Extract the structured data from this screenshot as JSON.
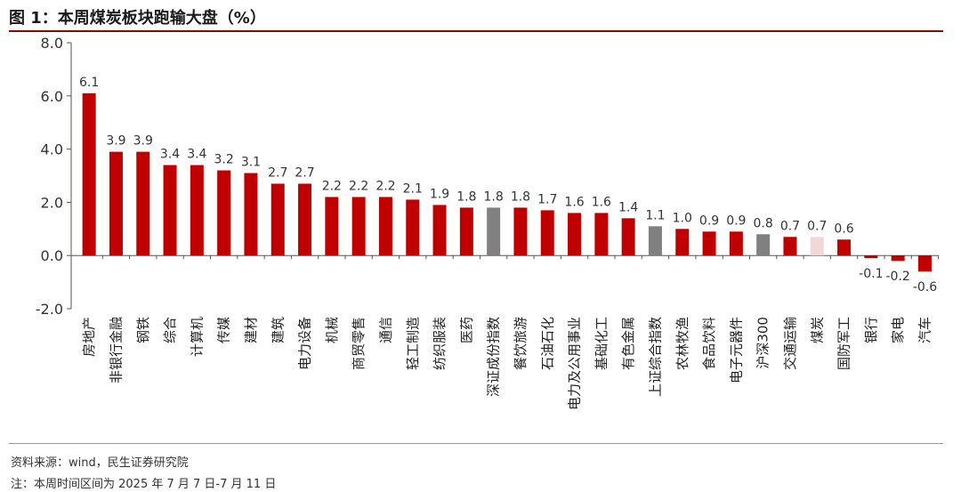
{
  "title": "图 1：本周煤炭板块跑输大盘（%）",
  "source_note": "资料来源：wind，民生证券研究院",
  "period_note": "注：本周时间区间为 2025 年 7 月 7 日-7 月 11 日",
  "colors": {
    "bar_default": "#c00000",
    "bar_index": "#808080",
    "bar_highlight": "#f2d7d7",
    "axis": "#555555"
  },
  "chart_data": {
    "type": "bar",
    "title": "图 1：本周煤炭板块跑输大盘（%）",
    "xlabel": "",
    "ylabel": "",
    "ylim": [
      -2.0,
      8.0
    ],
    "yticks": [
      "8.0",
      "6.0",
      "4.0",
      "2.0",
      "0.0",
      "-2.0"
    ],
    "grid": false,
    "legend": "none",
    "categories": [
      "房地产",
      "非银行金融",
      "钢铁",
      "综合",
      "计算机",
      "传媒",
      "建材",
      "建筑",
      "电力设备",
      "机械",
      "商贸零售",
      "通信",
      "轻工制造",
      "纺织服装",
      "医药",
      "深证成份指数",
      "餐饮旅游",
      "石油石化",
      "电力及公用事业",
      "基础化工",
      "有色金属",
      "上证综合指数",
      "农林牧渔",
      "食品饮料",
      "电子元器件",
      "沪深300",
      "交通运输",
      "煤炭",
      "国防军工",
      "银行",
      "家电",
      "汽车"
    ],
    "values": [
      6.1,
      3.9,
      3.9,
      3.4,
      3.4,
      3.2,
      3.1,
      2.7,
      2.7,
      2.2,
      2.2,
      2.2,
      2.1,
      1.9,
      1.8,
      1.8,
      1.8,
      1.7,
      1.6,
      1.6,
      1.4,
      1.1,
      1.0,
      0.9,
      0.9,
      0.8,
      0.7,
      0.7,
      0.6,
      -0.1,
      -0.2,
      -0.6
    ],
    "value_labels": [
      "6.1",
      "3.9",
      "3.9",
      "3.4",
      "3.4",
      "3.2",
      "3.1",
      "2.7",
      "2.7",
      "2.2",
      "2.2",
      "2.2",
      "2.1",
      "1.9",
      "1.8",
      "1.8",
      "1.8",
      "1.7",
      "1.6",
      "1.6",
      "1.4",
      "1.1",
      "1.0",
      "0.9",
      "0.9",
      "0.8",
      "0.7",
      "0.7",
      "0.6",
      "-0.1",
      "-0.2",
      "-0.6"
    ],
    "bar_kinds": [
      "sector",
      "sector",
      "sector",
      "sector",
      "sector",
      "sector",
      "sector",
      "sector",
      "sector",
      "sector",
      "sector",
      "sector",
      "sector",
      "sector",
      "sector",
      "index",
      "sector",
      "sector",
      "sector",
      "sector",
      "sector",
      "index",
      "sector",
      "sector",
      "sector",
      "index",
      "sector",
      "highlight",
      "sector",
      "sector",
      "sector",
      "sector"
    ]
  }
}
